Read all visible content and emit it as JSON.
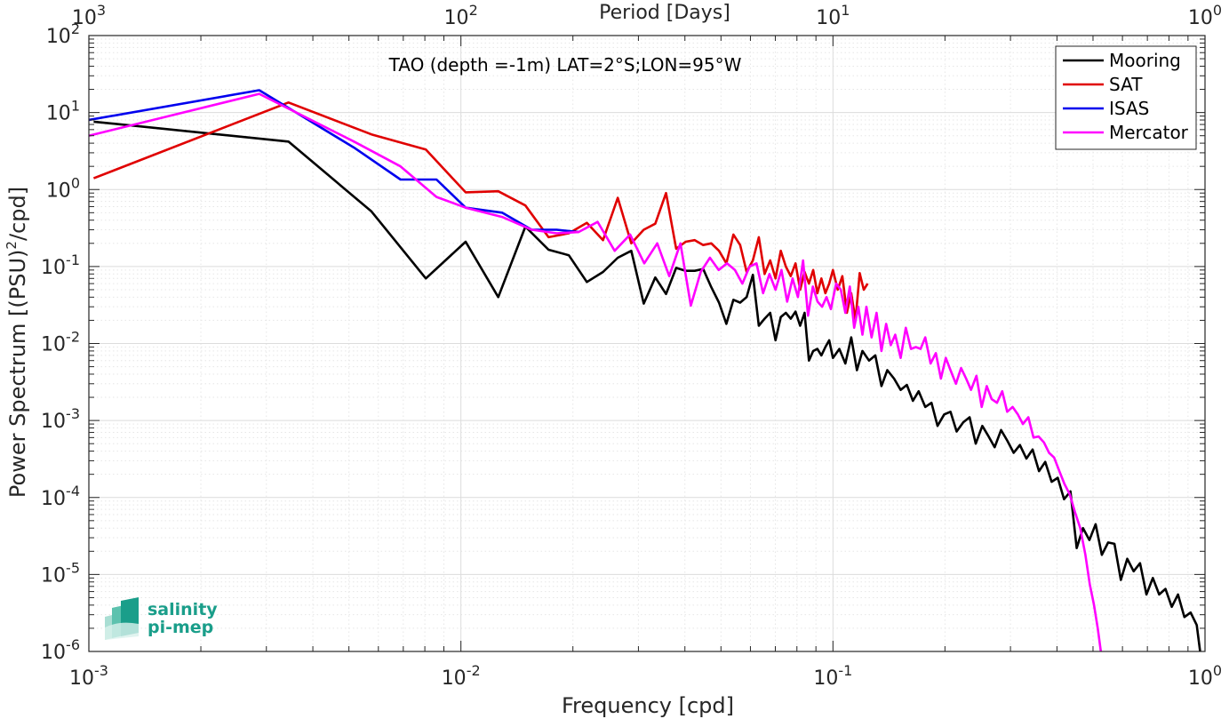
{
  "chart_data": {
    "type": "line",
    "title": "",
    "annotation": "TAO (depth =-1m) LAT=2°S;LON=95°W",
    "xlabel": "Frequency [cpd]",
    "ylabel": "Power Spectrum [(PSU)",
    "ylabel_sup": "2",
    "ylabel_tail": "/cpd]",
    "top_xlabel": "Period [Days]",
    "x_scale": "log",
    "y_scale": "log",
    "xlim": [
      0.001,
      1
    ],
    "ylim": [
      1e-06,
      100
    ],
    "grid": true,
    "legend_position": "top-right",
    "x_ticks": [
      {
        "base": "10",
        "exp": "-3",
        "value": 0.001
      },
      {
        "base": "10",
        "exp": "-2",
        "value": 0.01
      },
      {
        "base": "10",
        "exp": "-1",
        "value": 0.1
      },
      {
        "base": "10",
        "exp": "0",
        "value": 1
      }
    ],
    "top_ticks": [
      {
        "base": "10",
        "exp": "3",
        "value": 0.001
      },
      {
        "base": "10",
        "exp": "2",
        "value": 0.01
      },
      {
        "base": "10",
        "exp": "1",
        "value": 0.1
      },
      {
        "base": "10",
        "exp": "0",
        "value": 1
      }
    ],
    "y_ticks": [
      {
        "base": "10",
        "exp": "2",
        "value": 100
      },
      {
        "base": "10",
        "exp": "1",
        "value": 10
      },
      {
        "base": "10",
        "exp": "0",
        "value": 1
      },
      {
        "base": "10",
        "exp": "-1",
        "value": 0.1
      },
      {
        "base": "10",
        "exp": "-2",
        "value": 0.01
      },
      {
        "base": "10",
        "exp": "-3",
        "value": 0.001
      },
      {
        "base": "10",
        "exp": "-4",
        "value": 0.0001
      },
      {
        "base": "10",
        "exp": "-5",
        "value": 1e-05
      },
      {
        "base": "10",
        "exp": "-6",
        "value": 1e-06
      }
    ],
    "series": [
      {
        "name": "Mooring",
        "color": "#000000",
        "points": [
          [
            0.00103,
            7.6
          ],
          [
            0.00344,
            4.2
          ],
          [
            0.00575,
            0.52
          ],
          [
            0.00805,
            0.07
          ],
          [
            0.0103,
            0.21
          ],
          [
            0.0126,
            0.04
          ],
          [
            0.0149,
            0.33
          ],
          [
            0.0172,
            0.165
          ],
          [
            0.0195,
            0.14
          ],
          [
            0.0218,
            0.063
          ],
          [
            0.0241,
            0.085
          ],
          [
            0.0264,
            0.13
          ],
          [
            0.0287,
            0.16
          ],
          [
            0.031,
            0.033
          ],
          [
            0.0333,
            0.072
          ],
          [
            0.0356,
            0.044
          ],
          [
            0.0379,
            0.096
          ],
          [
            0.0402,
            0.088
          ],
          [
            0.0425,
            0.088
          ],
          [
            0.0448,
            0.093
          ],
          [
            0.0471,
            0.054
          ],
          [
            0.0494,
            0.034
          ],
          [
            0.0517,
            0.018
          ],
          [
            0.054,
            0.037
          ],
          [
            0.0563,
            0.034
          ],
          [
            0.0586,
            0.04
          ],
          [
            0.0609,
            0.078
          ],
          [
            0.0632,
            0.017
          ],
          [
            0.0655,
            0.021
          ],
          [
            0.0678,
            0.025
          ],
          [
            0.0701,
            0.011
          ],
          [
            0.0724,
            0.022
          ],
          [
            0.0747,
            0.025
          ],
          [
            0.077,
            0.021
          ],
          [
            0.0793,
            0.026
          ],
          [
            0.0816,
            0.017
          ],
          [
            0.0839,
            0.025
          ],
          [
            0.0862,
            0.006
          ],
          [
            0.0885,
            0.008
          ],
          [
            0.0908,
            0.0085
          ],
          [
            0.0931,
            0.007
          ],
          [
            0.0954,
            0.009
          ],
          [
            0.0977,
            0.011
          ],
          [
            0.1,
            0.0065
          ],
          [
            0.104,
            0.0085
          ],
          [
            0.108,
            0.0055
          ],
          [
            0.112,
            0.012
          ],
          [
            0.116,
            0.0045
          ],
          [
            0.12,
            0.008
          ],
          [
            0.125,
            0.006
          ],
          [
            0.13,
            0.007
          ],
          [
            0.135,
            0.0028
          ],
          [
            0.14,
            0.0045
          ],
          [
            0.146,
            0.0035
          ],
          [
            0.152,
            0.0025
          ],
          [
            0.158,
            0.0029
          ],
          [
            0.164,
            0.0018
          ],
          [
            0.17,
            0.0024
          ],
          [
            0.177,
            0.0015
          ],
          [
            0.184,
            0.0017
          ],
          [
            0.191,
            0.00085
          ],
          [
            0.199,
            0.0012
          ],
          [
            0.207,
            0.0013
          ],
          [
            0.215,
            0.00072
          ],
          [
            0.224,
            0.00095
          ],
          [
            0.233,
            0.0011
          ],
          [
            0.242,
            0.0005
          ],
          [
            0.252,
            0.00085
          ],
          [
            0.262,
            0.00062
          ],
          [
            0.272,
            0.00045
          ],
          [
            0.283,
            0.00075
          ],
          [
            0.294,
            0.00055
          ],
          [
            0.306,
            0.00038
          ],
          [
            0.318,
            0.00048
          ],
          [
            0.331,
            0.00032
          ],
          [
            0.344,
            0.00042
          ],
          [
            0.358,
            0.00022
          ],
          [
            0.372,
            0.00029
          ],
          [
            0.387,
            0.00016
          ],
          [
            0.402,
            0.00018
          ],
          [
            0.418,
            9.5e-05
          ],
          [
            0.435,
            0.00012
          ],
          [
            0.452,
            2.2e-05
          ],
          [
            0.47,
            4e-05
          ],
          [
            0.489,
            2.8e-05
          ],
          [
            0.508,
            4.5e-05
          ],
          [
            0.528,
            1.8e-05
          ],
          [
            0.549,
            2.6e-05
          ],
          [
            0.571,
            2.5e-05
          ],
          [
            0.594,
            8.5e-06
          ],
          [
            0.618,
            1.6e-05
          ],
          [
            0.643,
            1.1e-05
          ],
          [
            0.669,
            1.4e-05
          ],
          [
            0.696,
            5.5e-06
          ],
          [
            0.724,
            9e-06
          ],
          [
            0.753,
            5.5e-06
          ],
          [
            0.783,
            6.5e-06
          ],
          [
            0.814,
            3.8e-06
          ],
          [
            0.846,
            5.5e-06
          ],
          [
            0.88,
            2.8e-06
          ],
          [
            0.915,
            3.2e-06
          ],
          [
            0.95,
            2.2e-06
          ],
          [
            0.97,
            1e-06
          ]
        ]
      },
      {
        "name": "SAT",
        "color": "#e00000",
        "points": [
          [
            0.00103,
            1.4
          ],
          [
            0.00344,
            13.5
          ],
          [
            0.00575,
            5.2
          ],
          [
            0.00805,
            3.3
          ],
          [
            0.0103,
            0.92
          ],
          [
            0.0126,
            0.95
          ],
          [
            0.0149,
            0.62
          ],
          [
            0.0172,
            0.24
          ],
          [
            0.0195,
            0.27
          ],
          [
            0.0218,
            0.37
          ],
          [
            0.0241,
            0.22
          ],
          [
            0.0264,
            0.78
          ],
          [
            0.0287,
            0.2
          ],
          [
            0.031,
            0.3
          ],
          [
            0.0333,
            0.36
          ],
          [
            0.0356,
            0.9
          ],
          [
            0.0379,
            0.17
          ],
          [
            0.0402,
            0.21
          ],
          [
            0.0425,
            0.22
          ],
          [
            0.0448,
            0.19
          ],
          [
            0.0471,
            0.2
          ],
          [
            0.0494,
            0.16
          ],
          [
            0.0517,
            0.11
          ],
          [
            0.054,
            0.26
          ],
          [
            0.0563,
            0.19
          ],
          [
            0.0586,
            0.085
          ],
          [
            0.0609,
            0.12
          ],
          [
            0.0632,
            0.24
          ],
          [
            0.0655,
            0.08
          ],
          [
            0.0678,
            0.12
          ],
          [
            0.0701,
            0.07
          ],
          [
            0.0724,
            0.16
          ],
          [
            0.0747,
            0.1
          ],
          [
            0.077,
            0.075
          ],
          [
            0.0793,
            0.11
          ],
          [
            0.0816,
            0.05
          ],
          [
            0.0839,
            0.085
          ],
          [
            0.0862,
            0.06
          ],
          [
            0.0885,
            0.09
          ],
          [
            0.0908,
            0.045
          ],
          [
            0.0931,
            0.07
          ],
          [
            0.0954,
            0.045
          ],
          [
            0.0977,
            0.06
          ],
          [
            0.1,
            0.09
          ],
          [
            0.103,
            0.05
          ],
          [
            0.106,
            0.075
          ],
          [
            0.109,
            0.025
          ],
          [
            0.112,
            0.045
          ],
          [
            0.115,
            0.02
          ],
          [
            0.118,
            0.082
          ],
          [
            0.121,
            0.05
          ],
          [
            0.124,
            0.06
          ]
        ]
      },
      {
        "name": "ISAS",
        "color": "#0000ee",
        "points": [
          [
            0.001,
            8.0
          ],
          [
            0.00287,
            19.5
          ],
          [
            0.00516,
            3.5
          ],
          [
            0.00688,
            1.35
          ],
          [
            0.0086,
            1.35
          ],
          [
            0.0103,
            0.58
          ],
          [
            0.0129,
            0.5
          ],
          [
            0.0155,
            0.3
          ],
          [
            0.0181,
            0.3
          ],
          [
            0.0207,
            0.28
          ]
        ]
      },
      {
        "name": "Mercator",
        "color": "#ff00ff",
        "points": [
          [
            0.001,
            5.0
          ],
          [
            0.00287,
            17.5
          ],
          [
            0.00516,
            4.2
          ],
          [
            0.00688,
            2.0
          ],
          [
            0.0086,
            0.8
          ],
          [
            0.0103,
            0.58
          ],
          [
            0.0129,
            0.44
          ],
          [
            0.0155,
            0.3
          ],
          [
            0.0181,
            0.27
          ],
          [
            0.0207,
            0.28
          ],
          [
            0.0233,
            0.38
          ],
          [
            0.0259,
            0.16
          ],
          [
            0.0285,
            0.26
          ],
          [
            0.0311,
            0.11
          ],
          [
            0.0337,
            0.2
          ],
          [
            0.0363,
            0.075
          ],
          [
            0.0389,
            0.2
          ],
          [
            0.0415,
            0.031
          ],
          [
            0.0441,
            0.085
          ],
          [
            0.0467,
            0.13
          ],
          [
            0.0493,
            0.09
          ],
          [
            0.0519,
            0.11
          ],
          [
            0.0545,
            0.09
          ],
          [
            0.0571,
            0.06
          ],
          [
            0.0597,
            0.1
          ],
          [
            0.0623,
            0.11
          ],
          [
            0.0649,
            0.045
          ],
          [
            0.0675,
            0.08
          ],
          [
            0.0701,
            0.05
          ],
          [
            0.0727,
            0.09
          ],
          [
            0.0753,
            0.035
          ],
          [
            0.0779,
            0.07
          ],
          [
            0.0805,
            0.04
          ],
          [
            0.0831,
            0.12
          ],
          [
            0.0857,
            0.023
          ],
          [
            0.0883,
            0.055
          ],
          [
            0.0909,
            0.035
          ],
          [
            0.0935,
            0.03
          ],
          [
            0.0961,
            0.04
          ],
          [
            0.0987,
            0.028
          ],
          [
            0.102,
            0.06
          ],
          [
            0.105,
            0.05
          ],
          [
            0.108,
            0.025
          ],
          [
            0.111,
            0.055
          ],
          [
            0.114,
            0.016
          ],
          [
            0.117,
            0.03
          ],
          [
            0.12,
            0.013
          ],
          [
            0.123,
            0.03
          ],
          [
            0.127,
            0.012
          ],
          [
            0.131,
            0.025
          ],
          [
            0.135,
            0.008
          ],
          [
            0.139,
            0.018
          ],
          [
            0.143,
            0.0095
          ],
          [
            0.147,
            0.013
          ],
          [
            0.152,
            0.0065
          ],
          [
            0.157,
            0.016
          ],
          [
            0.162,
            0.0085
          ],
          [
            0.167,
            0.009
          ],
          [
            0.172,
            0.0085
          ],
          [
            0.177,
            0.012
          ],
          [
            0.183,
            0.0055
          ],
          [
            0.189,
            0.0075
          ],
          [
            0.195,
            0.0035
          ],
          [
            0.201,
            0.0065
          ],
          [
            0.207,
            0.0045
          ],
          [
            0.214,
            0.003
          ],
          [
            0.221,
            0.0048
          ],
          [
            0.228,
            0.0035
          ],
          [
            0.235,
            0.0025
          ],
          [
            0.243,
            0.0038
          ],
          [
            0.251,
            0.0015
          ],
          [
            0.259,
            0.0028
          ],
          [
            0.267,
            0.0019
          ],
          [
            0.276,
            0.0017
          ],
          [
            0.285,
            0.0024
          ],
          [
            0.294,
            0.0013
          ],
          [
            0.304,
            0.0015
          ],
          [
            0.314,
            0.0012
          ],
          [
            0.324,
            0.0009
          ],
          [
            0.335,
            0.0011
          ],
          [
            0.346,
            0.0006
          ],
          [
            0.357,
            0.00062
          ],
          [
            0.369,
            0.00052
          ],
          [
            0.381,
            0.00038
          ],
          [
            0.393,
            0.00033
          ],
          [
            0.406,
            0.00022
          ],
          [
            0.419,
            0.00015
          ],
          [
            0.433,
            0.00011
          ],
          [
            0.447,
            6.5e-05
          ],
          [
            0.462,
            4e-05
          ],
          [
            0.477,
            1.8e-05
          ],
          [
            0.49,
            7.5e-06
          ],
          [
            0.503,
            4e-06
          ],
          [
            0.515,
            2e-06
          ],
          [
            0.525,
            1e-06
          ]
        ]
      }
    ]
  },
  "logo": {
    "line1": "salinity",
    "line2": "pi-mep"
  }
}
